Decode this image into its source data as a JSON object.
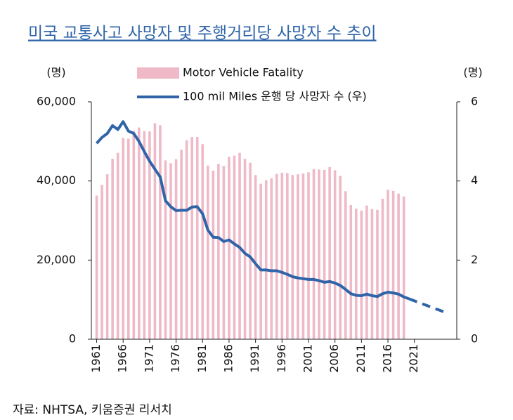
{
  "chart_data": {
    "type": "bar_line",
    "title": "미국 교통사고 사망자 및 주행거리당 사망자 수 추이",
    "y_unit": "(명)",
    "y2_unit": "(명)",
    "source": "자료: NHTSA, 키움증권 리서치",
    "xlim": [
      1960,
      2029
    ],
    "xticks": [
      1961,
      1966,
      1971,
      1976,
      1981,
      1986,
      1991,
      1996,
      2001,
      2006,
      2011,
      2016,
      2021
    ],
    "ylim": [
      0,
      60000
    ],
    "yticks": [
      0,
      {
        "value": 20000,
        "label": "20,000"
      },
      {
        "value": 40000,
        "label": "40,000"
      },
      {
        "value": 60000,
        "label": "60,000"
      }
    ],
    "y2lim": [
      0,
      6
    ],
    "y2ticks": [
      0,
      2,
      4,
      6
    ],
    "series": [
      {
        "name": "Motor Vehicle Fatality",
        "type": "bar",
        "color": "#efb9c7",
        "x": [
          1961,
          1962,
          1963,
          1964,
          1965,
          1966,
          1967,
          1968,
          1969,
          1970,
          1971,
          1972,
          1973,
          1974,
          1975,
          1976,
          1977,
          1978,
          1979,
          1980,
          1981,
          1982,
          1983,
          1984,
          1985,
          1986,
          1987,
          1988,
          1989,
          1990,
          1991,
          1992,
          1993,
          1994,
          1995,
          1996,
          1997,
          1998,
          1999,
          2000,
          2001,
          2002,
          2003,
          2004,
          2005,
          2006,
          2007,
          2008,
          2009,
          2010,
          2011,
          2012,
          2013,
          2014,
          2015,
          2016,
          2017,
          2018,
          2019
        ],
        "values": [
          36300,
          39000,
          41700,
          45600,
          47100,
          50900,
          50700,
          52700,
          53500,
          52600,
          52500,
          54600,
          54100,
          45200,
          44500,
          45500,
          47900,
          50300,
          51100,
          51100,
          49300,
          43900,
          42600,
          44300,
          43800,
          46100,
          46400,
          47100,
          45600,
          44600,
          41500,
          39300,
          40200,
          40700,
          41800,
          42100,
          42000,
          41500,
          41700,
          41900,
          42200,
          43000,
          42900,
          42800,
          43500,
          42700,
          41300,
          37400,
          33900,
          33000,
          32500,
          33800,
          32900,
          32700,
          35500,
          37800,
          37500,
          36800,
          36100
        ]
      },
      {
        "name": "100 mil Miles 운행 당 사망자 수 (우)",
        "type": "line",
        "axis": "y2",
        "color": "#2f64a8",
        "projection_from": 2020,
        "x": [
          1961,
          1962,
          1963,
          1964,
          1965,
          1966,
          1967,
          1968,
          1969,
          1970,
          1971,
          1972,
          1973,
          1974,
          1975,
          1976,
          1977,
          1978,
          1979,
          1980,
          1981,
          1982,
          1983,
          1984,
          1985,
          1986,
          1987,
          1988,
          1989,
          1990,
          1991,
          1992,
          1993,
          1994,
          1995,
          1996,
          1997,
          1998,
          1999,
          2000,
          2001,
          2002,
          2003,
          2004,
          2005,
          2006,
          2007,
          2008,
          2009,
          2010,
          2011,
          2012,
          2013,
          2014,
          2015,
          2016,
          2017,
          2018,
          2019,
          2020,
          2021,
          2022,
          2023,
          2024,
          2025,
          2026,
          2027
        ],
        "values": [
          4.95,
          5.1,
          5.2,
          5.4,
          5.3,
          5.5,
          5.26,
          5.2,
          5.0,
          4.74,
          4.5,
          4.3,
          4.1,
          3.5,
          3.35,
          3.25,
          3.26,
          3.26,
          3.34,
          3.35,
          3.17,
          2.76,
          2.58,
          2.57,
          2.47,
          2.51,
          2.41,
          2.32,
          2.17,
          2.08,
          1.91,
          1.75,
          1.75,
          1.73,
          1.73,
          1.69,
          1.64,
          1.58,
          1.55,
          1.53,
          1.51,
          1.51,
          1.48,
          1.44,
          1.46,
          1.42,
          1.36,
          1.26,
          1.15,
          1.11,
          1.1,
          1.14,
          1.1,
          1.08,
          1.15,
          1.19,
          1.17,
          1.14,
          1.07,
          1.02,
          0.97,
          0.92,
          0.87,
          0.82,
          0.77,
          0.72,
          0.67
        ]
      }
    ]
  }
}
